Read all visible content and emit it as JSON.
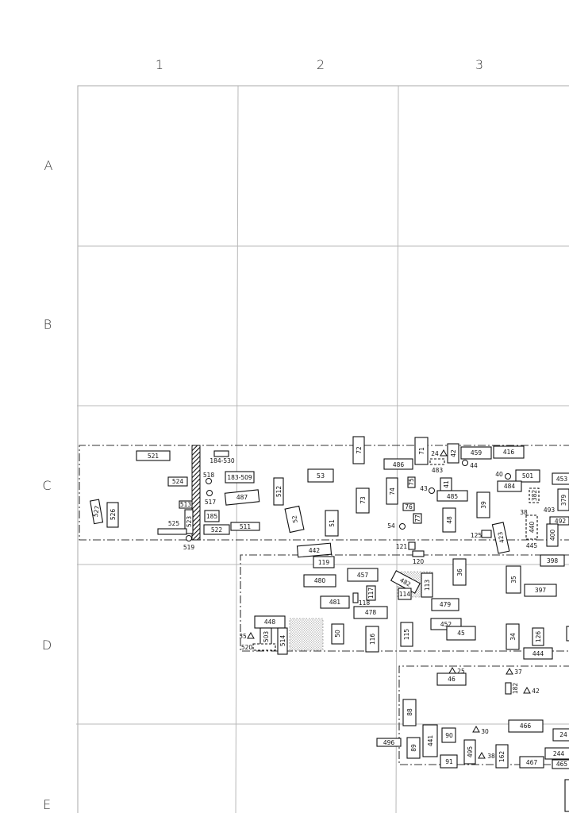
{
  "columns": [
    "1",
    "2",
    "3"
  ],
  "rows": [
    "A",
    "B",
    "C",
    "D",
    "E"
  ],
  "features": [
    {
      "label": "521"
    },
    {
      "label": "524"
    },
    {
      "label": "184-530"
    },
    {
      "label": "518"
    },
    {
      "label": "183-509"
    },
    {
      "label": "517"
    },
    {
      "label": "513"
    },
    {
      "label": "487"
    },
    {
      "label": "527"
    },
    {
      "label": "526"
    },
    {
      "label": "523"
    },
    {
      "label": "185"
    },
    {
      "label": "525"
    },
    {
      "label": "522"
    },
    {
      "label": "511"
    },
    {
      "label": "519"
    },
    {
      "label": "512"
    },
    {
      "label": "53"
    },
    {
      "label": "72"
    },
    {
      "label": "73"
    },
    {
      "label": "52"
    },
    {
      "label": "51"
    },
    {
      "label": "486"
    },
    {
      "label": "71"
    },
    {
      "label": "24"
    },
    {
      "label": "42"
    },
    {
      "label": "483"
    },
    {
      "label": "44"
    },
    {
      "label": "459"
    },
    {
      "label": "416"
    },
    {
      "label": "74"
    },
    {
      "label": "75"
    },
    {
      "label": "43"
    },
    {
      "label": "41"
    },
    {
      "label": "485"
    },
    {
      "label": "76"
    },
    {
      "label": "77"
    },
    {
      "label": "54"
    },
    {
      "label": "48"
    },
    {
      "label": "39"
    },
    {
      "label": "40"
    },
    {
      "label": "501"
    },
    {
      "label": "484"
    },
    {
      "label": "453"
    },
    {
      "label": "382"
    },
    {
      "label": "379"
    },
    {
      "label": "38"
    },
    {
      "label": "493"
    },
    {
      "label": "125"
    },
    {
      "label": "423"
    },
    {
      "label": "440"
    },
    {
      "label": "492"
    },
    {
      "label": "445"
    },
    {
      "label": "400"
    },
    {
      "label": "121"
    },
    {
      "label": "120"
    },
    {
      "label": "442"
    },
    {
      "label": "119"
    },
    {
      "label": "398"
    },
    {
      "label": "457"
    },
    {
      "label": "480"
    },
    {
      "label": "482"
    },
    {
      "label": "113"
    },
    {
      "label": "114"
    },
    {
      "label": "36"
    },
    {
      "label": "35"
    },
    {
      "label": "397"
    },
    {
      "label": "481"
    },
    {
      "label": "118"
    },
    {
      "label": "117"
    },
    {
      "label": "478"
    },
    {
      "label": "479"
    },
    {
      "label": "448"
    },
    {
      "label": "35"
    },
    {
      "label": "503"
    },
    {
      "label": "520"
    },
    {
      "label": "514"
    },
    {
      "label": "50"
    },
    {
      "label": "116"
    },
    {
      "label": "115"
    },
    {
      "label": "452"
    },
    {
      "label": "45"
    },
    {
      "label": "34"
    },
    {
      "label": "126"
    },
    {
      "label": "444"
    },
    {
      "label": "25"
    },
    {
      "label": "37"
    },
    {
      "label": "46"
    },
    {
      "label": "182"
    },
    {
      "label": "42"
    },
    {
      "label": "88"
    },
    {
      "label": "496"
    },
    {
      "label": "89"
    },
    {
      "label": "441"
    },
    {
      "label": "90"
    },
    {
      "label": "30"
    },
    {
      "label": "495"
    },
    {
      "label": "91"
    },
    {
      "label": "38"
    },
    {
      "label": "162"
    },
    {
      "label": "466"
    },
    {
      "label": "467"
    },
    {
      "label": "24"
    },
    {
      "label": "244"
    },
    {
      "label": "465"
    }
  ]
}
